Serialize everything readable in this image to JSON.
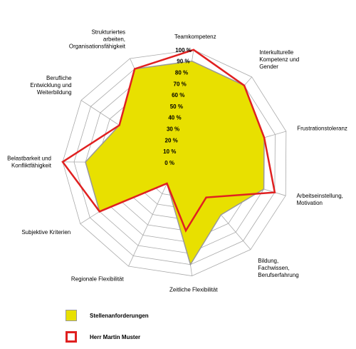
{
  "chart_data": {
    "type": "radar",
    "title": "",
    "axes": [
      "Teamkompetenz",
      "Interkulturelle\nKompetenz und\nGender",
      "Frustrationstoleranz",
      "Arbeitseinstellung,\nMotivation",
      "Bildung,\nFachwissen,\nBerufserfahrung",
      "Zeitliche Flexibilität",
      "Regionale Flexibilität",
      "Subjektive Kriterien",
      "Belastbarkeit und\nKonfliktfähigkeit",
      "Berufliche\nEntwicklung und\nWeiterbildung",
      "Strukturiertes\narbeiten,\nOrganisationsfähigkeit"
    ],
    "ticks": [
      "0 %",
      "10 %",
      "20 %",
      "30 %",
      "40 %",
      "50 %",
      "60 %",
      "70 %",
      "80 %",
      "90 %",
      "100 %"
    ],
    "range": [
      0,
      100
    ],
    "series": [
      {
        "name": "Stellenanforderungen",
        "values": [
          90,
          90,
          80,
          80,
          60,
          90,
          20,
          80,
          80,
          60,
          90
        ],
        "fill": "#e8e000",
        "stroke": "#999999"
      },
      {
        "name": "Herr Martin Muster",
        "values": [
          100,
          90,
          80,
          90,
          40,
          60,
          20,
          80,
          100,
          60,
          90
        ],
        "fill": "none",
        "stroke": "#e02020"
      }
    ],
    "legend_position": "bottom-left",
    "grid": true
  }
}
